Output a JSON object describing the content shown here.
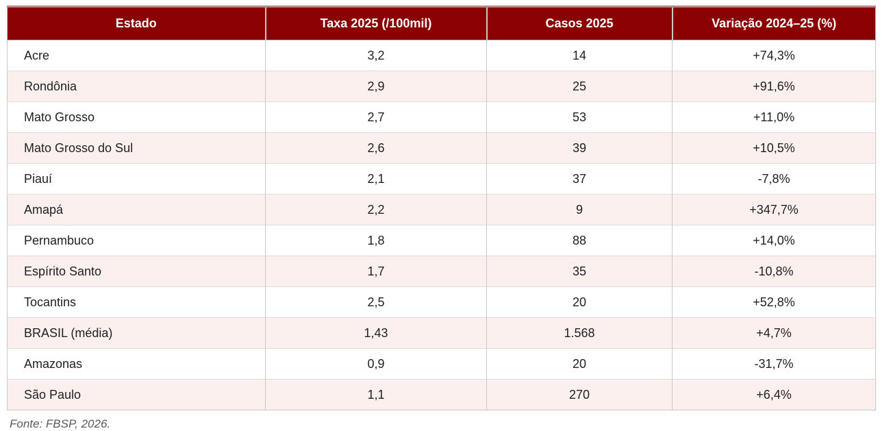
{
  "colors": {
    "header_bg": "#8B0102",
    "header_text": "#FFFFFF",
    "row_alt_bg": "#FBF0EE",
    "border": "#C9C9C9",
    "spellcheck_underline": "#D23F31"
  },
  "table": {
    "columns": [
      "Estado",
      "Taxa 2025 (/100mil)",
      "Casos 2025",
      "Variação 2024–25 (%)"
    ],
    "rows": [
      [
        "Acre",
        "3,2",
        "14",
        "+74,3%"
      ],
      [
        "Rondônia",
        "2,9",
        "25",
        "+91,6%"
      ],
      [
        "Mato Grosso",
        "2,7",
        "53",
        "+11,0%"
      ],
      [
        "Mato Grosso do Sul",
        "2,6",
        "39",
        "+10,5%"
      ],
      [
        "Piauí",
        "2,1",
        "37",
        "-7,8%"
      ],
      [
        "Amapá",
        "2,2",
        "9",
        "+347,7%"
      ],
      [
        "Pernambuco",
        "1,8",
        "88",
        "+14,0%"
      ],
      [
        "Espírito Santo",
        "1,7",
        "35",
        "-10,8%"
      ],
      [
        "Tocantins",
        "2,5",
        "20",
        "+52,8%"
      ],
      [
        "BRASIL (média)",
        "1,43",
        "1.568",
        "+4,7%"
      ],
      [
        "Amazonas",
        "0,9",
        "20",
        "-31,7%"
      ],
      [
        "São Paulo",
        "1,1",
        "270",
        "+6,4%"
      ]
    ]
  },
  "source_note": {
    "prefix": "Fonte: ",
    "flagged_word": "FBSP,",
    "suffix": " 2026."
  }
}
